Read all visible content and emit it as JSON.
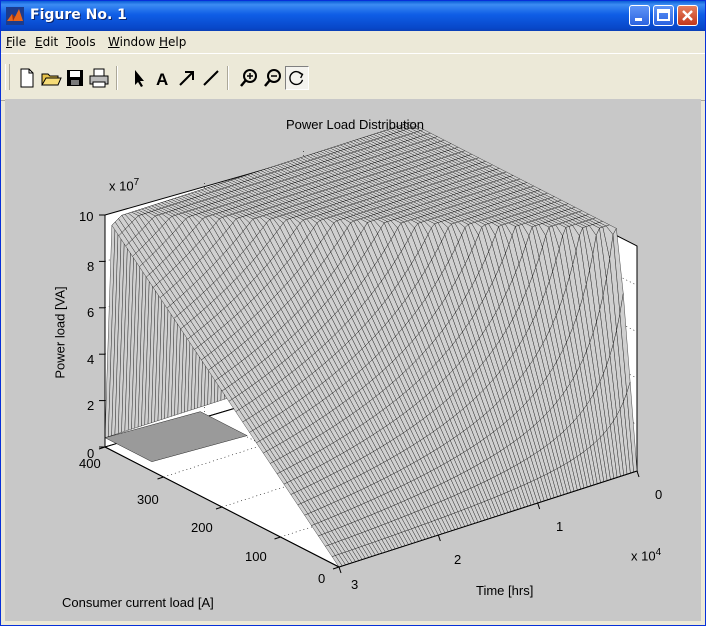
{
  "window": {
    "title": "Figure No. 1"
  },
  "menu": [
    "File",
    "Edit",
    "Tools",
    "Window",
    "Help"
  ],
  "toolbar": {
    "tools": [
      "new-file-icon",
      "open-folder-icon",
      "save-icon",
      "print-icon",
      "select-arrow-icon",
      "text-tool-icon",
      "arrow-tool-icon",
      "line-tool-icon",
      "zoom-in-icon",
      "zoom-out-icon",
      "rotate-3d-icon"
    ],
    "pressed_tool": "rotate-3d-icon"
  },
  "plot": {
    "title": "Power Load Distribution",
    "z_exponent": "x 10",
    "z_exponent_power": "7",
    "z_label": "Power load [VA]",
    "z_ticks": [
      "10",
      "8",
      "6",
      "4",
      "2",
      "0"
    ],
    "y_label": "Consumer current load [A]",
    "y_ticks": [
      "400",
      "300",
      "200",
      "100",
      "0"
    ],
    "x_label": "Time [hrs]",
    "x_ticks": [
      "0",
      "1",
      "2",
      "3"
    ],
    "x_exponent": "x 10",
    "x_exponent_power": "4"
  },
  "colors": {
    "figure_bg": "#c8c8c8",
    "surface": "#d0d0d0",
    "mesh": "#000000",
    "axes_bg": "#ffffff"
  }
}
